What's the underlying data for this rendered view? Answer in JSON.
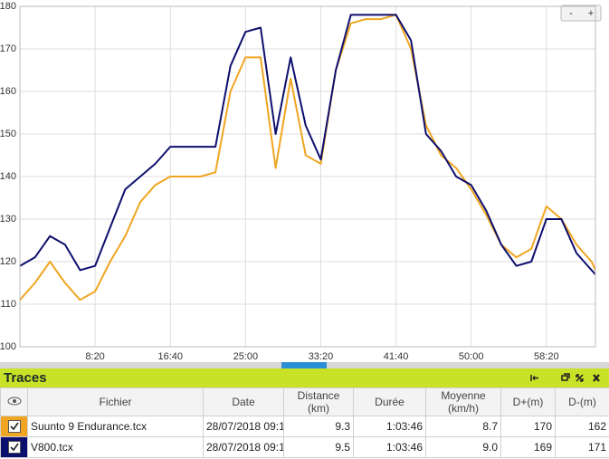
{
  "chart_data": {
    "type": "line",
    "x": [
      0,
      100,
      200,
      300,
      400,
      500,
      600,
      700,
      800,
      900,
      1000,
      1100,
      1200,
      1300,
      1400,
      1500,
      1600,
      1700,
      1800,
      1900,
      2000,
      2100,
      2200,
      2300,
      2400,
      2500,
      2600,
      2700,
      2800,
      2900,
      3000,
      3100,
      3200,
      3300,
      3400,
      3500,
      3600,
      3700,
      3800,
      3826
    ],
    "series": [
      {
        "name": "Suunto 9 Endurance.tcx",
        "color": "#f0a623",
        "values": [
          111,
          115,
          120,
          115,
          111,
          113,
          120,
          126,
          134,
          138,
          140,
          140,
          140,
          141,
          160,
          168,
          168,
          142,
          163,
          145,
          143,
          165,
          176,
          177,
          177,
          178,
          170,
          152,
          145,
          142,
          137,
          131,
          124,
          121,
          123,
          133,
          130,
          124,
          120,
          118
        ]
      },
      {
        "name": "V800.tcx",
        "color": "#0d0f6e",
        "values": [
          119,
          121,
          126,
          124,
          118,
          119,
          128,
          137,
          140,
          143,
          147,
          147,
          147,
          147,
          166,
          174,
          175,
          150,
          168,
          152,
          144,
          165,
          178,
          178,
          178,
          178,
          172,
          150,
          146,
          140,
          138,
          132,
          124,
          119,
          120,
          130,
          130,
          122,
          118,
          117
        ]
      }
    ],
    "xlim": [
      0,
      3826
    ],
    "xticks": [
      {
        "value": 500,
        "label": "8:20"
      },
      {
        "value": 1000,
        "label": "16:40"
      },
      {
        "value": 1500,
        "label": "25:00"
      },
      {
        "value": 2000,
        "label": "33:20"
      },
      {
        "value": 2500,
        "label": "41:40"
      },
      {
        "value": 3000,
        "label": "50:00"
      },
      {
        "value": 3500,
        "label": "58:20"
      }
    ],
    "ylim": [
      100,
      180
    ],
    "yticks": [
      100,
      110,
      120,
      130,
      140,
      150,
      160,
      170,
      180
    ],
    "grid": true
  },
  "zoom_buttons": [
    "-",
    "+"
  ],
  "panel": {
    "title": "Traces",
    "columns": [
      "Fichier",
      "Date",
      "Distance\n(km)",
      "Durée",
      "Moyenne\n(km/h)",
      "D+(m)",
      "D-(m)"
    ],
    "rows": [
      [
        "Suunto 9 Endurance.tcx",
        "28/07/2018 09:1",
        "9.3",
        "1:03:46",
        "8.7",
        "170",
        "162"
      ],
      [
        "V800.tcx",
        "28/07/2018 09:1",
        "9.5",
        "1:03:46",
        "9.0",
        "169",
        "171"
      ]
    ]
  }
}
